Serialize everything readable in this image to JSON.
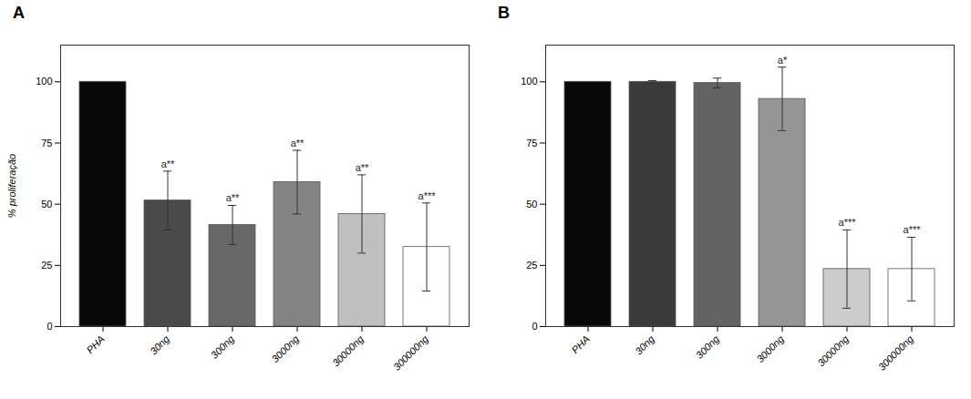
{
  "chart_data": [
    {
      "type": "bar",
      "title": "A",
      "categories": [
        "PHA",
        "30ng",
        "300ng",
        "3000ng",
        "30000ng",
        "300000ng"
      ],
      "values": [
        100,
        51.5,
        41.5,
        59,
        46,
        32.5
      ],
      "errors": [
        0,
        12,
        8,
        13,
        16,
        18
      ],
      "colors": [
        "#080808",
        "#4a4a4a",
        "#686868",
        "#848484",
        "#c0c0c0",
        "#ffffff"
      ],
      "annotations": [
        null,
        "a**",
        "a**",
        "a**",
        "a**",
        "a***"
      ],
      "ylabel": "% proliferação",
      "ylim": [
        0,
        115
      ],
      "yticks": [
        0,
        25,
        50,
        75,
        100
      ]
    },
    {
      "type": "bar",
      "title": "B",
      "categories": [
        "PHA",
        "30ng",
        "300ng",
        "3000ng",
        "30000ng",
        "300000ng"
      ],
      "values": [
        100,
        100,
        99.5,
        93,
        23.5,
        23.5
      ],
      "errors": [
        0,
        0.5,
        2,
        13,
        16,
        13
      ],
      "colors": [
        "#080808",
        "#3a3a3a",
        "#636363",
        "#959595",
        "#cccccc",
        "#ffffff"
      ],
      "annotations": [
        null,
        null,
        null,
        "a*",
        "a***",
        "a***"
      ],
      "ylim": [
        0,
        115
      ],
      "yticks": [
        0,
        25,
        50,
        75,
        100
      ]
    }
  ]
}
